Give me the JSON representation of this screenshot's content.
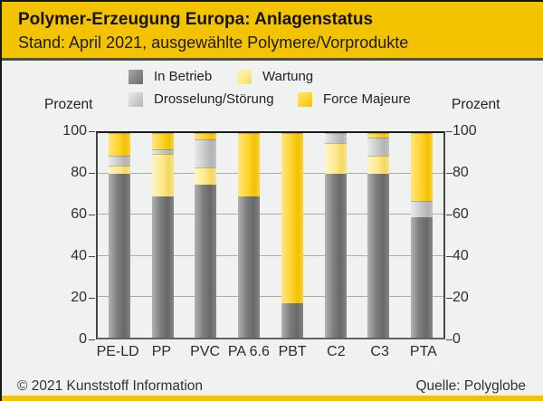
{
  "header": {
    "title": "Polymer-Erzeugung Europa: Anlagenstatus",
    "subtitle": "Stand: April 2021, ausgewählte Polymere/Vorprodukte"
  },
  "legend": {
    "items": [
      {
        "label": "In Betrieb",
        "color_key": "in_betrieb"
      },
      {
        "label": "Wartung",
        "color_key": "wartung"
      },
      {
        "label": "Drosselung/Störung",
        "color_key": "drosselung"
      },
      {
        "label": "Force Majeure",
        "color_key": "force_majeure"
      }
    ]
  },
  "axis": {
    "left_label": "Prozent",
    "right_label": "Prozent",
    "ticks": [
      100,
      80,
      60,
      40,
      20,
      0
    ]
  },
  "chart_data": {
    "type": "bar",
    "stacked": true,
    "title": "Polymer-Erzeugung Europa: Anlagenstatus",
    "subtitle": "Stand: April 2021, ausgewählte Polymere/Vorprodukte",
    "ylabel": "Prozent",
    "ylim": [
      0,
      100
    ],
    "yticks": [
      0,
      20,
      40,
      60,
      80,
      100
    ],
    "grid": true,
    "legend_position": "top",
    "categories": [
      "PE-LD",
      "PP",
      "PVC",
      "PA 6.6",
      "PBT",
      "C2",
      "C3",
      "PTA"
    ],
    "series": [
      {
        "name": "In Betrieb",
        "color_key": "in_betrieb",
        "values": [
          80,
          69,
          75,
          69,
          17,
          80,
          80,
          59
        ]
      },
      {
        "name": "Wartung",
        "color_key": "wartung",
        "values": [
          4,
          21,
          8,
          0,
          0,
          15,
          9,
          0
        ]
      },
      {
        "name": "Drosselung/Störung",
        "color_key": "drosselung",
        "values": [
          5,
          2,
          14,
          0,
          0,
          5,
          9,
          8
        ]
      },
      {
        "name": "Force Majeure",
        "color_key": "force_majeure",
        "values": [
          11,
          8,
          3,
          31,
          83,
          0,
          2,
          33
        ]
      }
    ]
  },
  "colors": {
    "header_bg": "#F4C300",
    "background": "#F0F1F1",
    "in_betrieb": "#7D7D7D",
    "wartung": "#FFEA90",
    "drosselung": "#C9CACC",
    "force_majeure": "#FFD42E",
    "grid": "#ACACAC",
    "axis": "#454545"
  },
  "footer": {
    "left": "© 2021 Kunststoff Information",
    "right": "Quelle: Polyglobe"
  }
}
